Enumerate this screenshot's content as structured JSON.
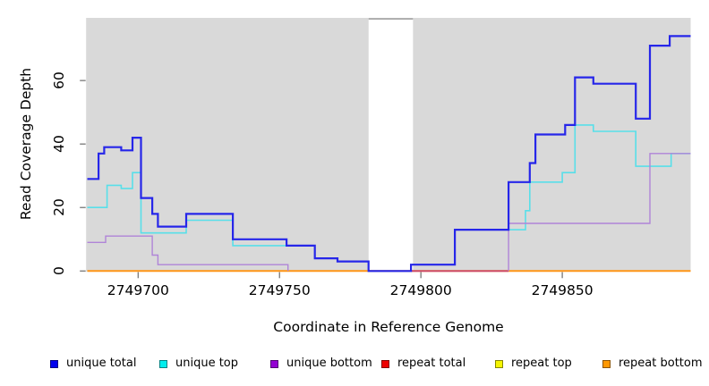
{
  "figure": {
    "xlabel": "Coordinate in Reference Genome",
    "ylabel": "Read Coverage Depth"
  },
  "axes": {
    "x_ticks": [
      {
        "value": 2749700,
        "label": "2749700"
      },
      {
        "value": 2749750,
        "label": "2749750"
      },
      {
        "value": 2749800,
        "label": "2749800"
      },
      {
        "value": 2749850,
        "label": "2749850"
      }
    ],
    "y_ticks": [
      {
        "value": 0,
        "label": "0"
      },
      {
        "value": 20,
        "label": "20"
      },
      {
        "value": 40,
        "label": "40"
      },
      {
        "value": 60,
        "label": "60"
      }
    ]
  },
  "legend": {
    "items": [
      {
        "label": "unique total",
        "color": "#0000ee"
      },
      {
        "label": "unique top",
        "color": "#00eeee"
      },
      {
        "label": "unique bottom",
        "color": "#9400d3"
      },
      {
        "label": "repeat total",
        "color": "#ee0000"
      },
      {
        "label": "repeat top",
        "color": "#f5f500"
      },
      {
        "label": "repeat bottom",
        "color": "#ff9800"
      }
    ]
  },
  "chart_data": {
    "type": "line",
    "subtype": "step",
    "title": "",
    "xlabel": "Coordinate in Reference Genome",
    "ylabel": "Read Coverage Depth",
    "xlim": [
      2749681.6,
      2749895.4
    ],
    "ylim": [
      0,
      79.6
    ],
    "x_tick_values": [
      2749700,
      2749750,
      2749800,
      2749850
    ],
    "y_tick_values": [
      0,
      20,
      40,
      60
    ],
    "plot_background": "#d9d9d9",
    "grid": false,
    "legend_position": "bottom",
    "masked_region": {
      "x_start": 2749781.5,
      "x_end": 2749797.2,
      "fill": "#ffffff",
      "top_border_color": "#9c9c9c"
    },
    "overlap_tint_segment": {
      "x_start": 2749796.5,
      "x_end": 2749831,
      "y": 0,
      "color": "#c9476e"
    },
    "series": [
      {
        "name": "repeat total",
        "color": "#e03030",
        "line_width": 1.5,
        "hide_zero_runs": false,
        "segments": [
          [
            2749682,
            2749895.4,
            0
          ]
        ]
      },
      {
        "name": "repeat top",
        "color": "#f2f230",
        "line_width": 1.5,
        "hide_zero_runs": false,
        "segments": [
          [
            2749682,
            2749895.4,
            0
          ]
        ]
      },
      {
        "name": "repeat bottom",
        "color": "#ff9517",
        "line_width": 2,
        "hide_zero_runs": false,
        "segments": [
          [
            2749682,
            2749895.4,
            0
          ]
        ]
      },
      {
        "name": "unique top",
        "color": "#58dfe9",
        "line_width": 1.6,
        "hide_zero_runs": false,
        "segments": [
          [
            2749682,
            2749689,
            20
          ],
          [
            2749689,
            2749694,
            27
          ],
          [
            2749694,
            2749698,
            26
          ],
          [
            2749698,
            2749701,
            31
          ],
          [
            2749701,
            2749717,
            12
          ],
          [
            2749717,
            2749733.5,
            16
          ],
          [
            2749733.5,
            2749762.5,
            8
          ],
          [
            2749762.5,
            2749770.5,
            4
          ],
          [
            2749770.5,
            2749781.5,
            3
          ],
          [
            2749781.5,
            2749796.5,
            0
          ],
          [
            2749796.5,
            2749812,
            2
          ],
          [
            2749812,
            2749837,
            13
          ],
          [
            2749837,
            2749838.5,
            19
          ],
          [
            2749838.5,
            2749850,
            28
          ],
          [
            2749850,
            2749854.5,
            31
          ],
          [
            2749854.5,
            2749861,
            46
          ],
          [
            2749861,
            2749876,
            44
          ],
          [
            2749876,
            2749888.5,
            33
          ],
          [
            2749888.5,
            2749895.4,
            37
          ]
        ]
      },
      {
        "name": "unique bottom",
        "color": "#b084d8",
        "line_width": 1.4,
        "hide_zero_runs": true,
        "segments": [
          [
            2749682,
            2749688.5,
            9
          ],
          [
            2749688.5,
            2749705,
            11
          ],
          [
            2749705,
            2749707,
            5
          ],
          [
            2749707,
            2749753,
            2
          ],
          [
            2749753,
            2749831,
            0
          ],
          [
            2749831,
            2749881,
            15
          ],
          [
            2749881,
            2749895.4,
            37
          ]
        ]
      },
      {
        "name": "unique total",
        "color": "#2626e9",
        "line_width": 2.2,
        "hide_zero_runs": false,
        "segments": [
          [
            2749682,
            2749686,
            29
          ],
          [
            2749686,
            2749688,
            37
          ],
          [
            2749688,
            2749694,
            39
          ],
          [
            2749694,
            2749698,
            38
          ],
          [
            2749698,
            2749701,
            42
          ],
          [
            2749701,
            2749705,
            23
          ],
          [
            2749705,
            2749707,
            18
          ],
          [
            2749707,
            2749717,
            14
          ],
          [
            2749717,
            2749733.5,
            18
          ],
          [
            2749733.5,
            2749752.5,
            10
          ],
          [
            2749752.5,
            2749762.5,
            8
          ],
          [
            2749762.5,
            2749770.5,
            4
          ],
          [
            2749770.5,
            2749781.5,
            3
          ],
          [
            2749781.5,
            2749796.5,
            0
          ],
          [
            2749796.5,
            2749812,
            2
          ],
          [
            2749812,
            2749831,
            13
          ],
          [
            2749831,
            2749838.5,
            28
          ],
          [
            2749838.5,
            2749840.5,
            34
          ],
          [
            2749840.5,
            2749851,
            43
          ],
          [
            2749851,
            2749854.5,
            46
          ],
          [
            2749854.5,
            2749861,
            61
          ],
          [
            2749861,
            2749876,
            59
          ],
          [
            2749876,
            2749881,
            48
          ],
          [
            2749881,
            2749888,
            71
          ],
          [
            2749888,
            2749895.4,
            74
          ]
        ]
      }
    ]
  }
}
